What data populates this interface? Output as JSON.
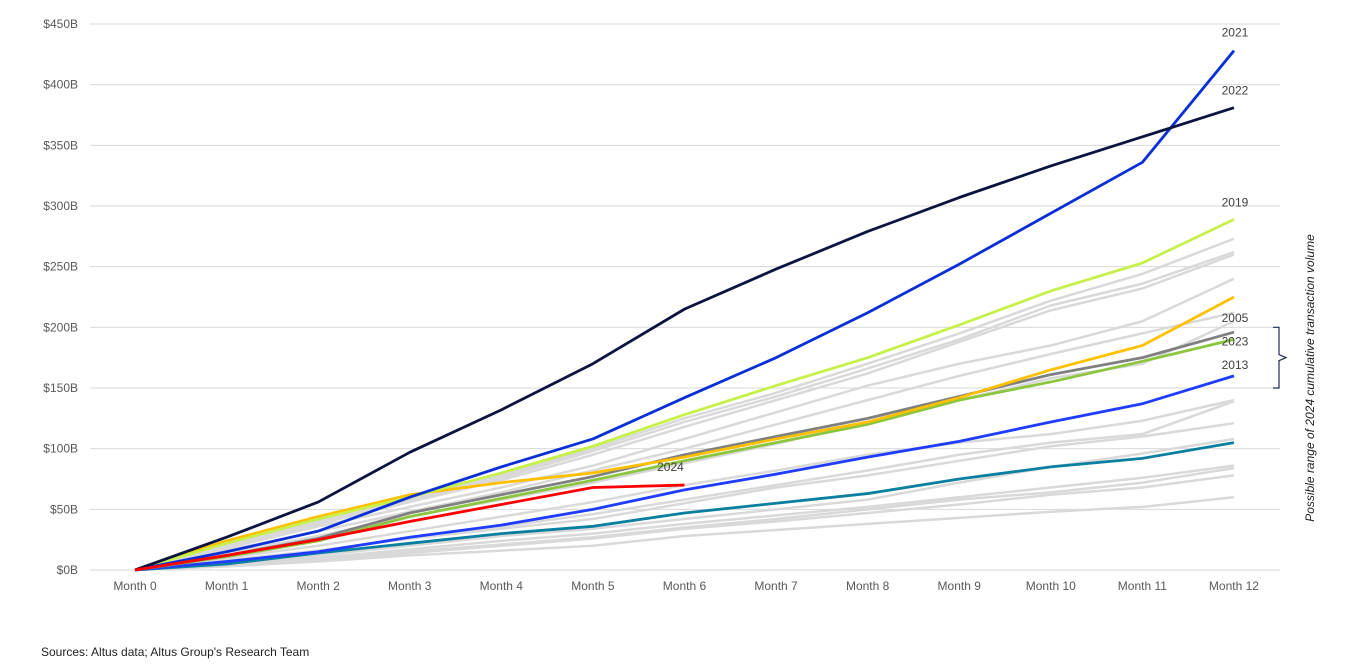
{
  "chart_data": {
    "type": "line",
    "title": "",
    "xlabel": "",
    "ylabel": "",
    "categories": [
      "Month 0",
      "Month 1",
      "Month 2",
      "Month 3",
      "Month 4",
      "Month 5",
      "Month 6",
      "Month 7",
      "Month 8",
      "Month 9",
      "Month 10",
      "Month 11",
      "Month 12"
    ],
    "ylim": [
      0,
      450
    ],
    "yticks": [
      0,
      50,
      100,
      150,
      200,
      250,
      300,
      350,
      400,
      450
    ],
    "ytick_labels": [
      "$0B",
      "$50B",
      "$100B",
      "$150B",
      "$200B",
      "$250B",
      "$300B",
      "$350B",
      "$400B",
      "$450B"
    ],
    "grid": true,
    "legend": "none",
    "highlighted_series": [
      {
        "name": "2022",
        "color": "#0b1440",
        "values": [
          0,
          27,
          56,
          97,
          132,
          170,
          215,
          248,
          279,
          307,
          333,
          357,
          381
        ]
      },
      {
        "name": "2021",
        "color": "#0a2fd6",
        "values": [
          0,
          15,
          32,
          60,
          85,
          108,
          142,
          175,
          212,
          252,
          294,
          336,
          428
        ]
      },
      {
        "name": "2019",
        "color": "#c8f04a",
        "values": [
          0,
          22,
          42,
          60,
          80,
          102,
          128,
          152,
          175,
          202,
          230,
          253,
          289
        ]
      },
      {
        "name": "",
        "color": "#ffc000",
        "values": [
          0,
          24,
          44,
          62,
          72,
          80,
          93,
          108,
          122,
          142,
          165,
          185,
          225
        ]
      },
      {
        "name": "2005",
        "color": "#808080",
        "values": [
          0,
          12,
          26,
          47,
          62,
          77,
          95,
          110,
          125,
          143,
          161,
          175,
          196
        ]
      },
      {
        "name": "2023",
        "color": "#8cc63f",
        "values": [
          0,
          11,
          24,
          44,
          59,
          74,
          90,
          105,
          120,
          140,
          155,
          172,
          190
        ]
      },
      {
        "name": "2013",
        "color": "#1f3cff",
        "values": [
          0,
          7,
          15,
          27,
          37,
          50,
          66,
          79,
          93,
          106,
          122,
          137,
          160
        ]
      },
      {
        "name": "",
        "color": "#0a7fa0",
        "values": [
          0,
          5,
          14,
          22,
          30,
          36,
          47,
          55,
          63,
          75,
          85,
          92,
          105
        ]
      },
      {
        "name": "2024",
        "color": "#ff0000",
        "values": [
          0,
          12,
          25,
          40,
          54,
          68,
          70
        ]
      }
    ],
    "background_series_color": "#d9d9d9",
    "background_series": [
      [
        0,
        22,
        42,
        60,
        78,
        100,
        125,
        146,
        170,
        195,
        222,
        244,
        273
      ],
      [
        0,
        20,
        40,
        58,
        76,
        98,
        122,
        143,
        166,
        190,
        218,
        236,
        262
      ],
      [
        0,
        20,
        38,
        56,
        74,
        95,
        118,
        140,
        162,
        188,
        214,
        232,
        260
      ],
      [
        0,
        18,
        36,
        52,
        68,
        86,
        108,
        130,
        152,
        170,
        185,
        205,
        240
      ],
      [
        0,
        16,
        32,
        48,
        64,
        82,
        100,
        120,
        140,
        160,
        178,
        195,
        212
      ],
      [
        0,
        14,
        28,
        44,
        58,
        72,
        88,
        104,
        122,
        140,
        158,
        170,
        205
      ],
      [
        0,
        10,
        20,
        32,
        44,
        56,
        70,
        82,
        95,
        105,
        112,
        123,
        140
      ],
      [
        0,
        8,
        16,
        26,
        36,
        46,
        58,
        70,
        82,
        95,
        105,
        112,
        139
      ],
      [
        0,
        8,
        16,
        26,
        34,
        42,
        55,
        68,
        78,
        90,
        102,
        110,
        121
      ],
      [
        0,
        6,
        12,
        20,
        28,
        34,
        42,
        50,
        58,
        72,
        85,
        96,
        108
      ],
      [
        0,
        5,
        10,
        17,
        24,
        30,
        38,
        45,
        52,
        60,
        68,
        76,
        86
      ],
      [
        0,
        4,
        9,
        15,
        21,
        27,
        35,
        42,
        50,
        58,
        64,
        72,
        84
      ],
      [
        0,
        4,
        8,
        14,
        20,
        26,
        34,
        40,
        47,
        54,
        62,
        68,
        78
      ],
      [
        0,
        3,
        7,
        12,
        16,
        20,
        28,
        33,
        38,
        43,
        48,
        52,
        60
      ]
    ],
    "annotation": "Possible range of 2024 cumulative transaction volume",
    "annotation_range": [
      150,
      200
    ]
  },
  "source": "Sources: Altus data; Altus Group's Research Team"
}
